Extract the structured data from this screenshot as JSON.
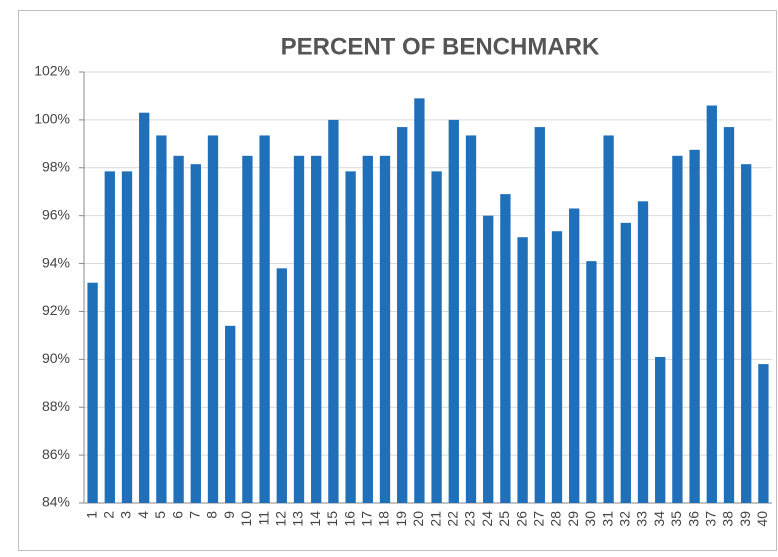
{
  "chart_data": {
    "type": "bar",
    "title": "PERCENT OF BENCHMARK",
    "categories": [
      "1",
      "2",
      "3",
      "4",
      "5",
      "6",
      "7",
      "8",
      "9",
      "10",
      "11",
      "12",
      "13",
      "14",
      "15",
      "16",
      "17",
      "18",
      "19",
      "20",
      "21",
      "22",
      "23",
      "24",
      "25",
      "26",
      "27",
      "28",
      "29",
      "30",
      "31",
      "32",
      "33",
      "34",
      "35",
      "36",
      "37",
      "38",
      "39",
      "40"
    ],
    "values": [
      93.2,
      97.85,
      97.85,
      100.3,
      99.35,
      98.5,
      98.15,
      99.35,
      91.4,
      98.5,
      99.35,
      93.8,
      98.5,
      98.5,
      100.0,
      97.85,
      98.5,
      98.5,
      99.7,
      100.9,
      97.85,
      100.0,
      99.35,
      96.0,
      96.9,
      95.1,
      99.7,
      95.35,
      96.3,
      94.1,
      99.35,
      95.7,
      96.6,
      90.1,
      98.5,
      98.75,
      100.6,
      99.7,
      98.15,
      89.8
    ],
    "color": "#1f70b8",
    "ylim": [
      84,
      102
    ],
    "yticks": [
      {
        "value": 84,
        "label": "84%"
      },
      {
        "value": 86,
        "label": "86%"
      },
      {
        "value": 88,
        "label": "88%"
      },
      {
        "value": 90,
        "label": "90%"
      },
      {
        "value": 92,
        "label": "92%"
      },
      {
        "value": 94,
        "label": "94%"
      },
      {
        "value": 96,
        "label": "96%"
      },
      {
        "value": 98,
        "label": "98%"
      },
      {
        "value": 100,
        "label": "100%"
      },
      {
        "value": 102,
        "label": "102%"
      }
    ],
    "grid": true
  }
}
